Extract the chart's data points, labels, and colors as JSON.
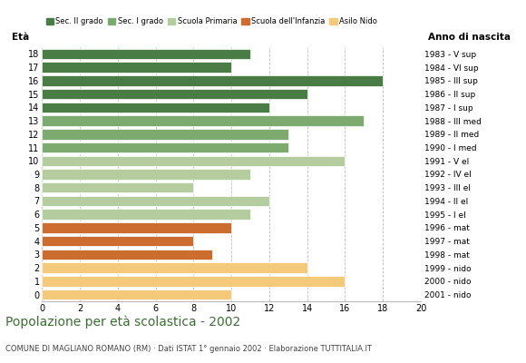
{
  "ages": [
    18,
    17,
    16,
    15,
    14,
    13,
    12,
    11,
    10,
    9,
    8,
    7,
    6,
    5,
    4,
    3,
    2,
    1,
    0
  ],
  "values": [
    11,
    10,
    18,
    14,
    12,
    17,
    13,
    13,
    16,
    11,
    8,
    12,
    11,
    10,
    8,
    9,
    14,
    16,
    10
  ],
  "anno_nascita": [
    "1983 - V sup",
    "1984 - VI sup",
    "1985 - III sup",
    "1986 - II sup",
    "1987 - I sup",
    "1988 - III med",
    "1989 - II med",
    "1990 - I med",
    "1991 - V el",
    "1992 - IV el",
    "1993 - III el",
    "1994 - II el",
    "1995 - I el",
    "1996 - mat",
    "1997 - mat",
    "1998 - mat",
    "1999 - nido",
    "2000 - nido",
    "2001 - nido"
  ],
  "categories": {
    "Sec. II grado": {
      "ages": [
        18,
        17,
        16,
        15,
        14
      ],
      "color": "#4a7c45"
    },
    "Sec. I grado": {
      "ages": [
        13,
        12,
        11
      ],
      "color": "#7daa6e"
    },
    "Scuola Primaria": {
      "ages": [
        10,
        9,
        8,
        7,
        6
      ],
      "color": "#b5cc9e"
    },
    "Scuola dell'Infanzia": {
      "ages": [
        5,
        4,
        3
      ],
      "color": "#cc6c2e"
    },
    "Asilo Nido": {
      "ages": [
        2,
        1,
        0
      ],
      "color": "#f5c97a"
    }
  },
  "bar_height": 0.78,
  "xlim": [
    0,
    20
  ],
  "xticks": [
    0,
    2,
    4,
    6,
    8,
    10,
    12,
    14,
    16,
    18,
    20
  ],
  "title": "Popolazione per età scolastica - 2002",
  "subtitle": "COMUNE DI MAGLIANO ROMANO (RM) · Dati ISTAT 1° gennaio 2002 · Elaborazione TUTTITALIA.IT",
  "ylabel_text": "Età",
  "ylabel2_text": "Anno di nascita",
  "title_color": "#3a6e32",
  "subtitle_color": "#444444",
  "grid_color": "#bbbbbb",
  "bg_color": "#ffffff",
  "legend_order": [
    "Sec. II grado",
    "Sec. I grado",
    "Scuola Primaria",
    "Scuola dell'Infanzia",
    "Asilo Nido"
  ]
}
